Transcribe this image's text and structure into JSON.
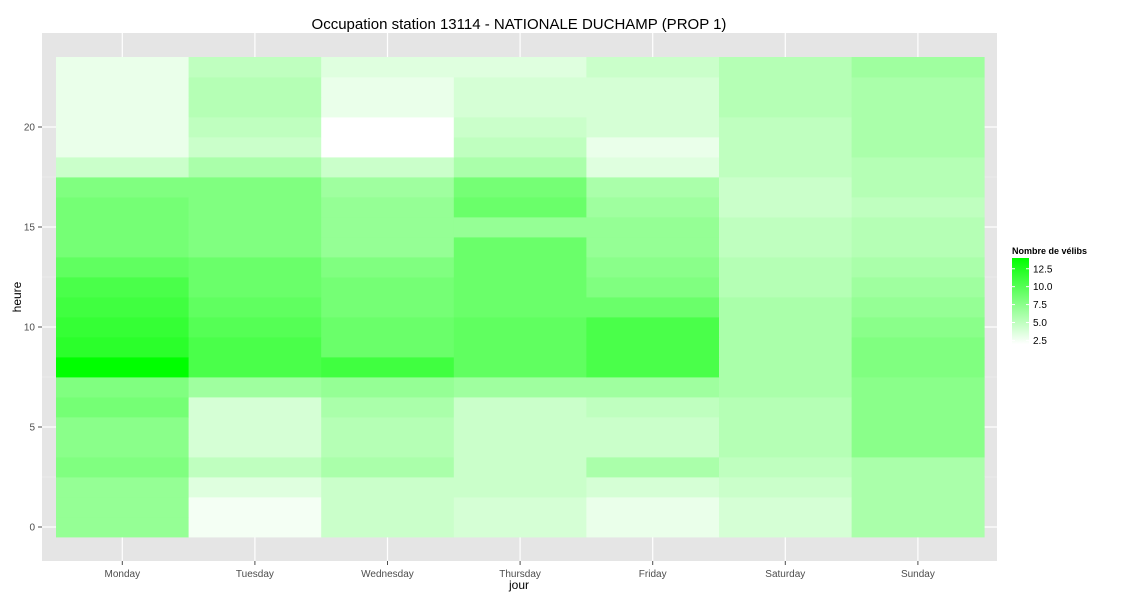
{
  "chart_data": {
    "type": "heatmap",
    "title": "Occupation station 13114 - NATIONALE DUCHAMP (PROP 1)",
    "xlabel": "jour",
    "ylabel": "heure",
    "x_categories": [
      "Monday",
      "Tuesday",
      "Wednesday",
      "Thursday",
      "Friday",
      "Saturday",
      "Sunday"
    ],
    "y_range": [
      -0.5,
      23.5
    ],
    "y_ticks": [
      0,
      5,
      10,
      15,
      20
    ],
    "grid": true,
    "legend": {
      "title": "Nombre de vélibs",
      "placement": "right",
      "ticks": [
        2.5,
        5.0,
        7.5,
        10.0,
        12.5
      ],
      "tick_labels": [
        "2.5",
        "5.0",
        "7.5",
        "10.0",
        "12.5"
      ],
      "min": 2.0,
      "max": 14.0,
      "low_color": "#ffffff",
      "high_color": "#00ff00"
    },
    "values": [
      [
        7.0,
        2.5,
        4.5,
        4.0,
        3.0,
        4.0,
        6.0
      ],
      [
        7.0,
        2.5,
        4.5,
        4.0,
        3.0,
        4.0,
        6.0
      ],
      [
        7.0,
        3.5,
        4.5,
        4.5,
        4.0,
        4.5,
        6.0
      ],
      [
        8.0,
        5.0,
        6.0,
        4.5,
        6.0,
        5.0,
        6.0
      ],
      [
        7.5,
        4.0,
        5.5,
        4.5,
        4.5,
        5.5,
        7.5
      ],
      [
        7.5,
        4.0,
        5.5,
        4.5,
        4.5,
        5.5,
        7.5
      ],
      [
        8.5,
        4.0,
        6.0,
        4.5,
        5.0,
        5.5,
        7.5
      ],
      [
        8.0,
        6.5,
        7.0,
        6.5,
        6.5,
        6.0,
        7.5
      ],
      [
        14.0,
        10.5,
        11.0,
        9.5,
        10.5,
        6.0,
        8.0
      ],
      [
        12.0,
        10.5,
        9.0,
        9.5,
        10.5,
        6.0,
        8.0
      ],
      [
        11.5,
        10.0,
        9.0,
        9.5,
        10.5,
        6.0,
        7.5
      ],
      [
        11.0,
        9.5,
        8.5,
        9.0,
        9.0,
        6.0,
        7.0
      ],
      [
        10.5,
        9.0,
        8.5,
        9.0,
        8.0,
        5.5,
        6.5
      ],
      [
        9.5,
        9.0,
        8.0,
        9.0,
        7.5,
        5.5,
        6.0
      ],
      [
        8.5,
        8.0,
        7.0,
        9.0,
        7.0,
        5.0,
        5.5
      ],
      [
        8.5,
        8.0,
        7.0,
        7.0,
        7.0,
        5.0,
        5.5
      ],
      [
        8.5,
        8.0,
        7.0,
        9.0,
        6.5,
        4.5,
        5.0
      ],
      [
        8.0,
        8.0,
        6.5,
        8.5,
        6.0,
        4.5,
        5.5
      ],
      [
        4.5,
        6.0,
        4.5,
        6.0,
        3.5,
        5.0,
        5.5
      ],
      [
        3.0,
        4.5,
        2.0,
        5.0,
        3.0,
        5.0,
        6.0
      ],
      [
        3.0,
        5.0,
        2.0,
        4.5,
        4.0,
        5.0,
        6.0
      ],
      [
        3.0,
        5.5,
        3.0,
        4.0,
        4.0,
        5.5,
        6.0
      ],
      [
        3.0,
        5.5,
        3.0,
        4.0,
        4.0,
        5.5,
        6.0
      ],
      [
        3.0,
        5.0,
        3.5,
        3.5,
        4.5,
        5.5,
        6.5
      ]
    ]
  }
}
